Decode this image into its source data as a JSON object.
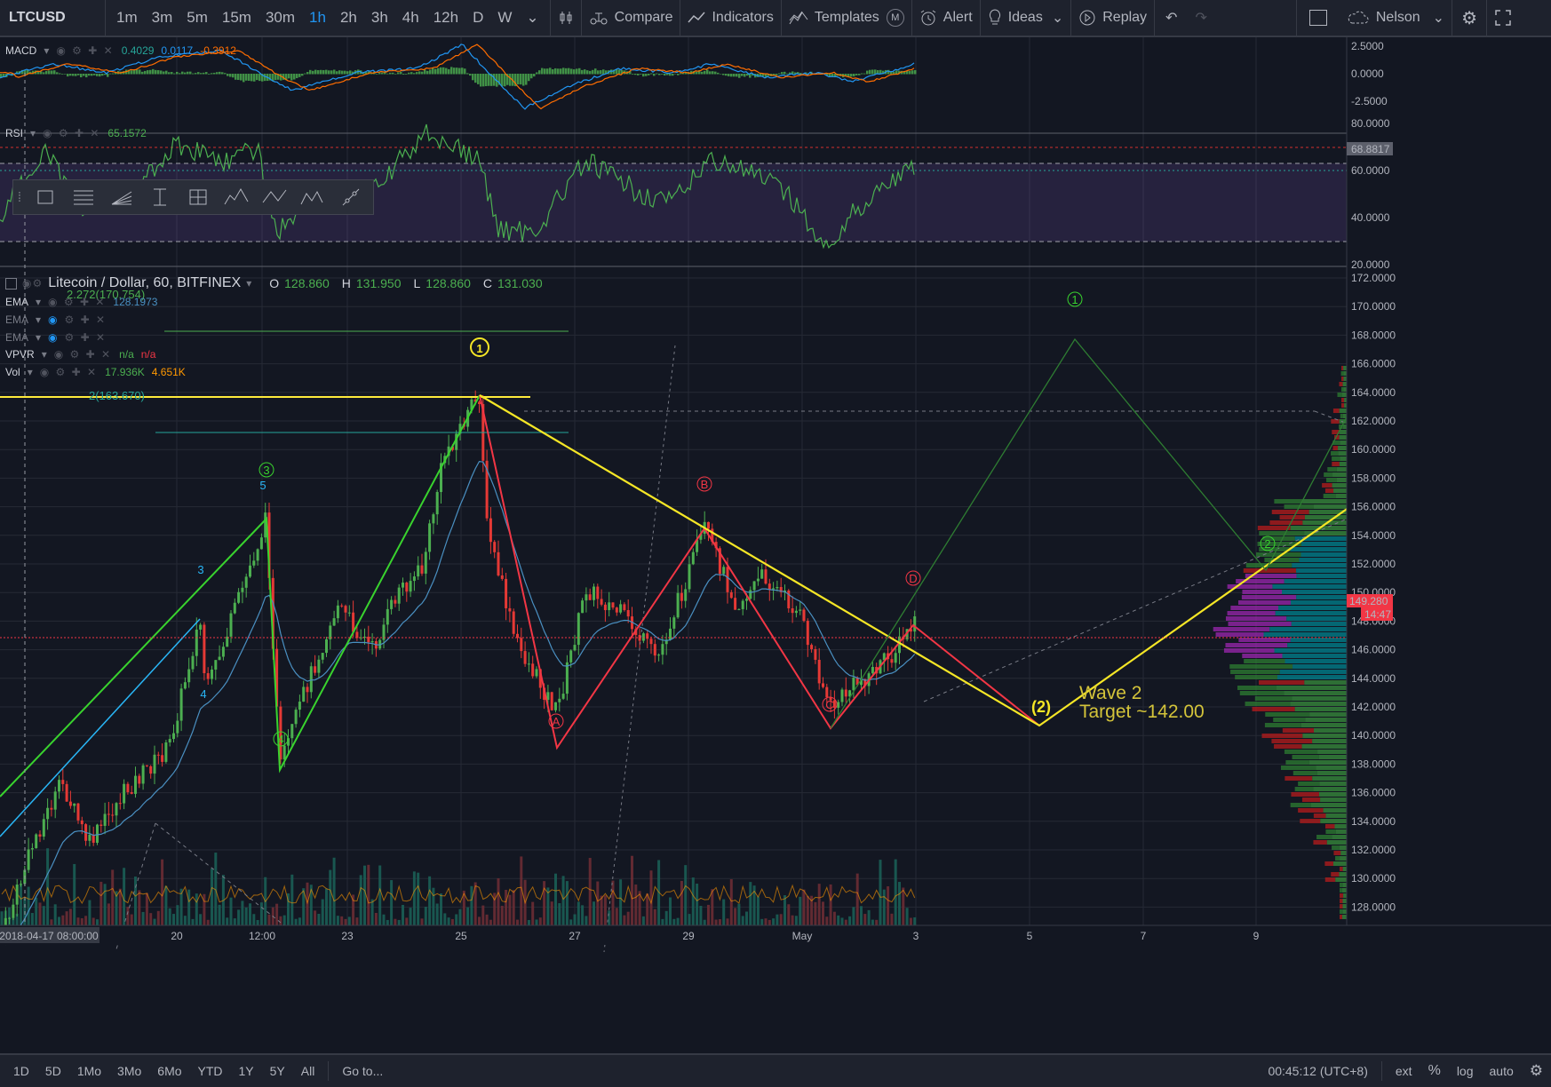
{
  "topbar": {
    "symbol": "LTCUSD",
    "intervals": [
      "1m",
      "3m",
      "5m",
      "15m",
      "30m",
      "1h",
      "2h",
      "3h",
      "4h",
      "12h",
      "D",
      "W"
    ],
    "compare": "Compare",
    "indicators": "Indicators",
    "templates": "Templates",
    "templates_badge": "M",
    "alert": "Alert",
    "ideas": "Ideas",
    "replay": "Replay",
    "user": "Nelson"
  },
  "macd": {
    "label": "MACD",
    "v1": "0.4029",
    "v2": "0.0117",
    "v3": "-0.3912",
    "ticks": [
      "2.5000",
      "0.0000",
      "-2.5000"
    ]
  },
  "rsi": {
    "label": "RSI",
    "value": "65.1572",
    "ticks": [
      "80.0000",
      "60.0000",
      "40.0000",
      "20.0000"
    ],
    "current": "68.8817"
  },
  "main": {
    "title": "Litecoin / Dollar, 60, BITFINEX",
    "o_label": "O",
    "o": "128.860",
    "h_label": "H",
    "h": "131.950",
    "l_label": "L",
    "l": "128.860",
    "c_label": "C",
    "c": "131.030",
    "ema1_label": "EMA",
    "ema1_value": "128.1973",
    "ema2_label": "EMA",
    "ema3_label": "EMA",
    "vpvr_label": "VPVR",
    "vpvr_v1": "n/a",
    "vpvr_v2": "n/a",
    "vol_label": "Vol",
    "vol_v1": "17.936K",
    "vol_v2": "4.651K",
    "fib1": "2.272(170.754)",
    "fib2": "2(163.670)",
    "price_ticks": [
      "172.0000",
      "170.0000",
      "168.0000",
      "166.0000",
      "164.0000",
      "162.0000",
      "160.0000",
      "158.0000",
      "156.0000",
      "154.0000",
      "152.0000",
      "150.0000",
      "148.0000",
      "146.0000",
      "144.0000",
      "142.0000",
      "140.0000",
      "138.0000",
      "136.0000",
      "134.0000",
      "132.0000",
      "130.0000",
      "128.0000"
    ],
    "last_price": "149.280",
    "countdown": "14:47",
    "time_ticks": [
      "2018-04-17 08:00:00",
      "20",
      "12:00",
      "23",
      "25",
      "27",
      "29",
      "May",
      "3",
      "5",
      "7",
      "9"
    ],
    "wave_labels": {
      "w1": "1",
      "w2": "2",
      "w3": "3",
      "w4": "4",
      "wA": "A",
      "wB": "B",
      "wC": "C",
      "wD": "D",
      "big1": "1",
      "big2": "(2)",
      "small3": "3",
      "small4": "4",
      "small5": "5",
      "f1": "1",
      "f2": "2"
    },
    "annotation1": "Wave 2",
    "annotation2": "Target ~142.00"
  },
  "bottombar": {
    "ranges": [
      "1D",
      "5D",
      "1Mo",
      "3Mo",
      "6Mo",
      "YTD",
      "1Y",
      "5Y",
      "All"
    ],
    "goto": "Go to...",
    "time": "00:45:12 (UTC+8)",
    "ext": "ext",
    "pct": "%",
    "log": "log",
    "auto": "auto"
  }
}
